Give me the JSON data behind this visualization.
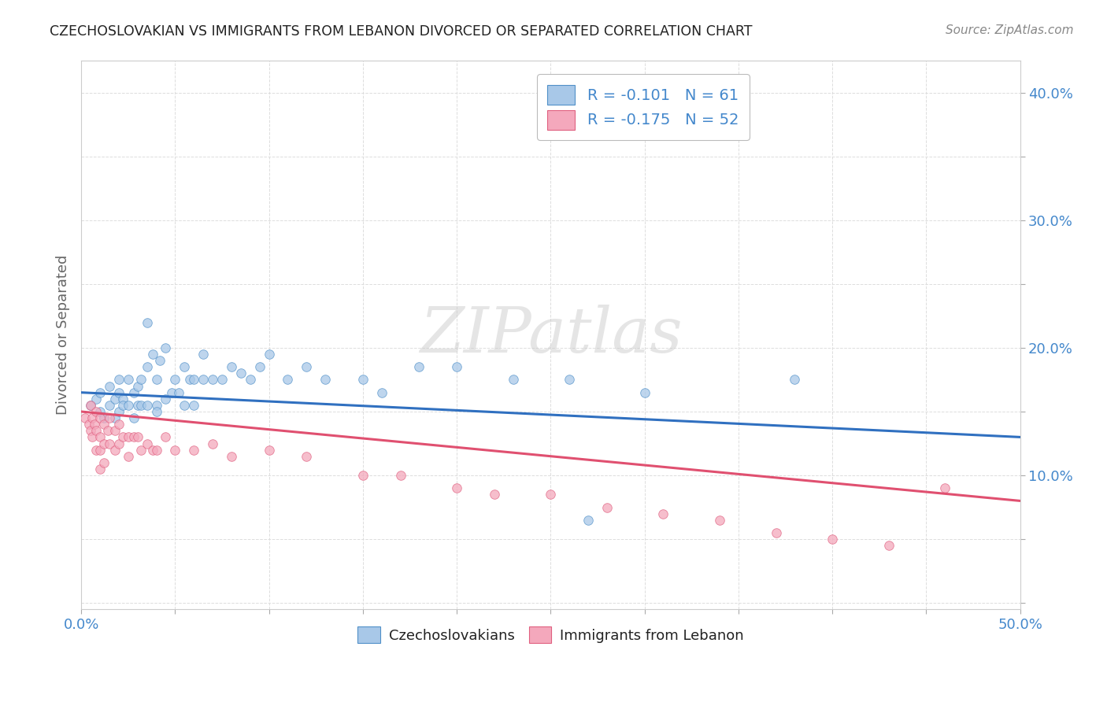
{
  "title": "CZECHOSLOVAKIAN VS IMMIGRANTS FROM LEBANON DIVORCED OR SEPARATED CORRELATION CHART",
  "source_text": "Source: ZipAtlas.com",
  "ylabel": "Divorced or Separated",
  "xlim": [
    0.0,
    0.5
  ],
  "ylim": [
    -0.005,
    0.425
  ],
  "x_ticks": [
    0.0,
    0.05,
    0.1,
    0.15,
    0.2,
    0.25,
    0.3,
    0.35,
    0.4,
    0.45,
    0.5
  ],
  "y_ticks": [
    0.0,
    0.05,
    0.1,
    0.15,
    0.2,
    0.25,
    0.3,
    0.35,
    0.4
  ],
  "color_blue": "#a8c8e8",
  "color_pink": "#f4a8bc",
  "color_blue_edge": "#5090c8",
  "color_pink_edge": "#e06080",
  "line_blue": "#3070c0",
  "line_pink": "#e05070",
  "tick_label_color": "#4488cc",
  "legend_text_color": "#4488cc",
  "axis_label_color": "#666666",
  "grid_color": "#dddddd",
  "background_color": "#ffffff",
  "blue_scatter_x": [
    0.005,
    0.008,
    0.01,
    0.01,
    0.012,
    0.015,
    0.015,
    0.018,
    0.018,
    0.02,
    0.02,
    0.02,
    0.022,
    0.022,
    0.025,
    0.025,
    0.028,
    0.028,
    0.03,
    0.03,
    0.032,
    0.032,
    0.035,
    0.035,
    0.035,
    0.038,
    0.04,
    0.04,
    0.04,
    0.042,
    0.045,
    0.045,
    0.048,
    0.05,
    0.052,
    0.055,
    0.055,
    0.058,
    0.06,
    0.06,
    0.065,
    0.065,
    0.07,
    0.075,
    0.08,
    0.085,
    0.09,
    0.095,
    0.1,
    0.11,
    0.12,
    0.13,
    0.15,
    0.16,
    0.18,
    0.2,
    0.23,
    0.26,
    0.3,
    0.38,
    0.27
  ],
  "blue_scatter_y": [
    0.155,
    0.16,
    0.15,
    0.165,
    0.145,
    0.155,
    0.17,
    0.16,
    0.145,
    0.165,
    0.175,
    0.15,
    0.16,
    0.155,
    0.175,
    0.155,
    0.165,
    0.145,
    0.17,
    0.155,
    0.175,
    0.155,
    0.22,
    0.185,
    0.155,
    0.195,
    0.155,
    0.175,
    0.15,
    0.19,
    0.2,
    0.16,
    0.165,
    0.175,
    0.165,
    0.185,
    0.155,
    0.175,
    0.175,
    0.155,
    0.195,
    0.175,
    0.175,
    0.175,
    0.185,
    0.18,
    0.175,
    0.185,
    0.195,
    0.175,
    0.185,
    0.175,
    0.175,
    0.165,
    0.185,
    0.185,
    0.175,
    0.175,
    0.165,
    0.175,
    0.065
  ],
  "pink_scatter_x": [
    0.002,
    0.004,
    0.005,
    0.005,
    0.006,
    0.006,
    0.007,
    0.008,
    0.008,
    0.008,
    0.01,
    0.01,
    0.01,
    0.01,
    0.012,
    0.012,
    0.012,
    0.014,
    0.015,
    0.015,
    0.018,
    0.018,
    0.02,
    0.02,
    0.022,
    0.025,
    0.025,
    0.028,
    0.03,
    0.032,
    0.035,
    0.038,
    0.04,
    0.045,
    0.05,
    0.06,
    0.07,
    0.08,
    0.1,
    0.12,
    0.15,
    0.17,
    0.2,
    0.22,
    0.25,
    0.28,
    0.31,
    0.34,
    0.37,
    0.4,
    0.43,
    0.46
  ],
  "pink_scatter_y": [
    0.145,
    0.14,
    0.155,
    0.135,
    0.145,
    0.13,
    0.14,
    0.15,
    0.135,
    0.12,
    0.145,
    0.13,
    0.12,
    0.105,
    0.14,
    0.125,
    0.11,
    0.135,
    0.145,
    0.125,
    0.135,
    0.12,
    0.14,
    0.125,
    0.13,
    0.13,
    0.115,
    0.13,
    0.13,
    0.12,
    0.125,
    0.12,
    0.12,
    0.13,
    0.12,
    0.12,
    0.125,
    0.115,
    0.12,
    0.115,
    0.1,
    0.1,
    0.09,
    0.085,
    0.085,
    0.075,
    0.07,
    0.065,
    0.055,
    0.05,
    0.045,
    0.09
  ],
  "blue_line_x": [
    0.0,
    0.5
  ],
  "blue_line_y": [
    0.165,
    0.13
  ],
  "pink_line_x": [
    0.0,
    0.5
  ],
  "pink_line_y": [
    0.15,
    0.08
  ]
}
